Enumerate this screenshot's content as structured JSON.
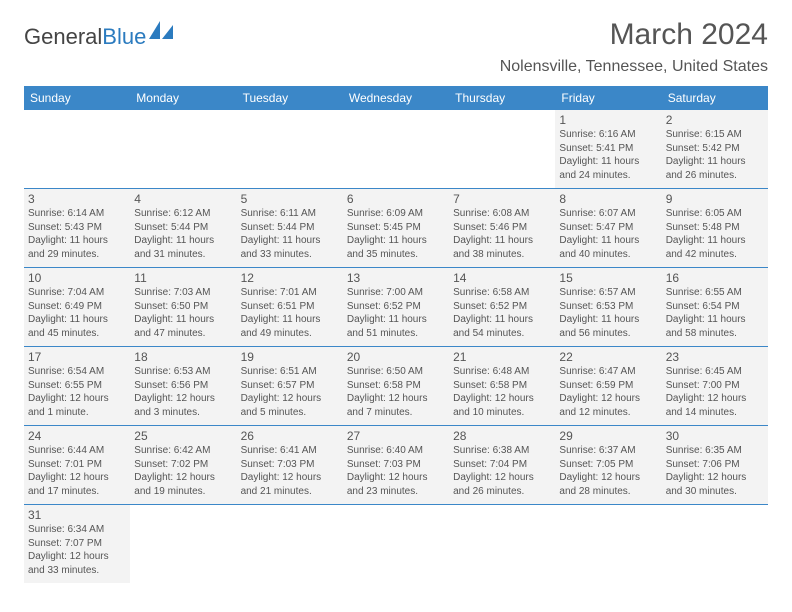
{
  "brand": {
    "part1": "General",
    "part2": "Blue"
  },
  "title": "March 2024",
  "location": "Nolensville, Tennessee, United States",
  "colors": {
    "header_bg": "#3b87c8",
    "header_fg": "#ffffff",
    "cell_bg": "#f3f3f3",
    "border": "#3b87c8",
    "text": "#555555"
  },
  "day_headers": [
    "Sunday",
    "Monday",
    "Tuesday",
    "Wednesday",
    "Thursday",
    "Friday",
    "Saturday"
  ],
  "weeks": [
    [
      null,
      null,
      null,
      null,
      null,
      {
        "n": "1",
        "sunrise": "6:16 AM",
        "sunset": "5:41 PM",
        "daylight": "11 hours and 24 minutes."
      },
      {
        "n": "2",
        "sunrise": "6:15 AM",
        "sunset": "5:42 PM",
        "daylight": "11 hours and 26 minutes."
      }
    ],
    [
      {
        "n": "3",
        "sunrise": "6:14 AM",
        "sunset": "5:43 PM",
        "daylight": "11 hours and 29 minutes."
      },
      {
        "n": "4",
        "sunrise": "6:12 AM",
        "sunset": "5:44 PM",
        "daylight": "11 hours and 31 minutes."
      },
      {
        "n": "5",
        "sunrise": "6:11 AM",
        "sunset": "5:44 PM",
        "daylight": "11 hours and 33 minutes."
      },
      {
        "n": "6",
        "sunrise": "6:09 AM",
        "sunset": "5:45 PM",
        "daylight": "11 hours and 35 minutes."
      },
      {
        "n": "7",
        "sunrise": "6:08 AM",
        "sunset": "5:46 PM",
        "daylight": "11 hours and 38 minutes."
      },
      {
        "n": "8",
        "sunrise": "6:07 AM",
        "sunset": "5:47 PM",
        "daylight": "11 hours and 40 minutes."
      },
      {
        "n": "9",
        "sunrise": "6:05 AM",
        "sunset": "5:48 PM",
        "daylight": "11 hours and 42 minutes."
      }
    ],
    [
      {
        "n": "10",
        "sunrise": "7:04 AM",
        "sunset": "6:49 PM",
        "daylight": "11 hours and 45 minutes."
      },
      {
        "n": "11",
        "sunrise": "7:03 AM",
        "sunset": "6:50 PM",
        "daylight": "11 hours and 47 minutes."
      },
      {
        "n": "12",
        "sunrise": "7:01 AM",
        "sunset": "6:51 PM",
        "daylight": "11 hours and 49 minutes."
      },
      {
        "n": "13",
        "sunrise": "7:00 AM",
        "sunset": "6:52 PM",
        "daylight": "11 hours and 51 minutes."
      },
      {
        "n": "14",
        "sunrise": "6:58 AM",
        "sunset": "6:52 PM",
        "daylight": "11 hours and 54 minutes."
      },
      {
        "n": "15",
        "sunrise": "6:57 AM",
        "sunset": "6:53 PM",
        "daylight": "11 hours and 56 minutes."
      },
      {
        "n": "16",
        "sunrise": "6:55 AM",
        "sunset": "6:54 PM",
        "daylight": "11 hours and 58 minutes."
      }
    ],
    [
      {
        "n": "17",
        "sunrise": "6:54 AM",
        "sunset": "6:55 PM",
        "daylight": "12 hours and 1 minute."
      },
      {
        "n": "18",
        "sunrise": "6:53 AM",
        "sunset": "6:56 PM",
        "daylight": "12 hours and 3 minutes."
      },
      {
        "n": "19",
        "sunrise": "6:51 AM",
        "sunset": "6:57 PM",
        "daylight": "12 hours and 5 minutes."
      },
      {
        "n": "20",
        "sunrise": "6:50 AM",
        "sunset": "6:58 PM",
        "daylight": "12 hours and 7 minutes."
      },
      {
        "n": "21",
        "sunrise": "6:48 AM",
        "sunset": "6:58 PM",
        "daylight": "12 hours and 10 minutes."
      },
      {
        "n": "22",
        "sunrise": "6:47 AM",
        "sunset": "6:59 PM",
        "daylight": "12 hours and 12 minutes."
      },
      {
        "n": "23",
        "sunrise": "6:45 AM",
        "sunset": "7:00 PM",
        "daylight": "12 hours and 14 minutes."
      }
    ],
    [
      {
        "n": "24",
        "sunrise": "6:44 AM",
        "sunset": "7:01 PM",
        "daylight": "12 hours and 17 minutes."
      },
      {
        "n": "25",
        "sunrise": "6:42 AM",
        "sunset": "7:02 PM",
        "daylight": "12 hours and 19 minutes."
      },
      {
        "n": "26",
        "sunrise": "6:41 AM",
        "sunset": "7:03 PM",
        "daylight": "12 hours and 21 minutes."
      },
      {
        "n": "27",
        "sunrise": "6:40 AM",
        "sunset": "7:03 PM",
        "daylight": "12 hours and 23 minutes."
      },
      {
        "n": "28",
        "sunrise": "6:38 AM",
        "sunset": "7:04 PM",
        "daylight": "12 hours and 26 minutes."
      },
      {
        "n": "29",
        "sunrise": "6:37 AM",
        "sunset": "7:05 PM",
        "daylight": "12 hours and 28 minutes."
      },
      {
        "n": "30",
        "sunrise": "6:35 AM",
        "sunset": "7:06 PM",
        "daylight": "12 hours and 30 minutes."
      }
    ],
    [
      {
        "n": "31",
        "sunrise": "6:34 AM",
        "sunset": "7:07 PM",
        "daylight": "12 hours and 33 minutes."
      },
      null,
      null,
      null,
      null,
      null,
      null
    ]
  ],
  "labels": {
    "sunrise": "Sunrise:",
    "sunset": "Sunset:",
    "daylight": "Daylight:"
  }
}
